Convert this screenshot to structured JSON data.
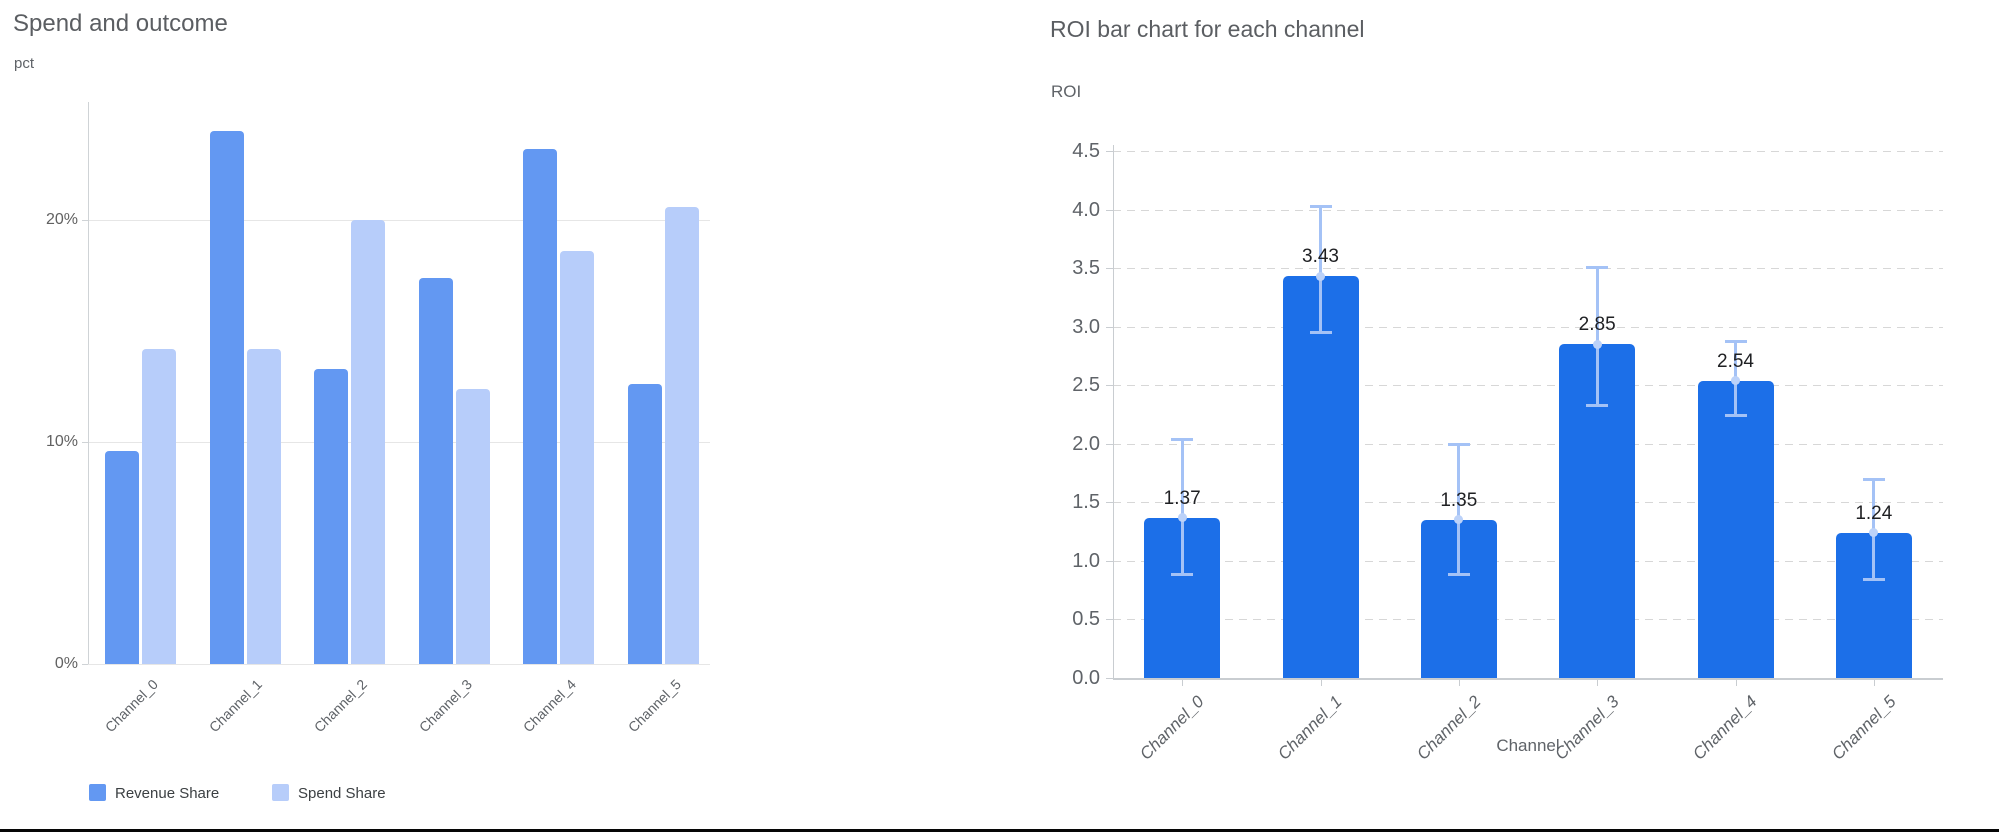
{
  "chart_data": [
    {
      "id": "spend-and-outcome",
      "type": "bar",
      "title": "Spend and outcome",
      "ylabel": "pct",
      "xlabel": "",
      "categories": [
        "Channel_0",
        "Channel_1",
        "Channel_2",
        "Channel_3",
        "Channel_4",
        "Channel_5"
      ],
      "series": [
        {
          "name": "Revenue Share",
          "color": "#6398f2",
          "values": [
            9.6,
            24.0,
            13.3,
            17.4,
            23.2,
            12.6
          ]
        },
        {
          "name": "Spend Share",
          "color": "#b7cdfa",
          "values": [
            14.2,
            14.2,
            20.0,
            12.4,
            18.6,
            20.6
          ]
        }
      ],
      "y_ticks": [
        {
          "value": 0,
          "label": "0%"
        },
        {
          "value": 10,
          "label": "10%"
        },
        {
          "value": 20,
          "label": "20%"
        }
      ],
      "ylim": [
        0,
        25.3
      ],
      "grid": "solid-horizontal",
      "legend_position": "bottom-left"
    },
    {
      "id": "roi-by-channel",
      "type": "bar",
      "title": "ROI bar chart for each channel",
      "ylabel": "ROI",
      "xlabel": "Channel",
      "categories": [
        "Channel_0",
        "Channel_1",
        "Channel_2",
        "Channel_3",
        "Channel_4",
        "Channel_5"
      ],
      "values": [
        1.37,
        3.43,
        1.35,
        2.85,
        2.54,
        1.24
      ],
      "bar_labels": [
        "1.37",
        "3.43",
        "1.35",
        "2.85",
        "2.54",
        "1.24"
      ],
      "error_low": [
        0.88,
        2.95,
        0.88,
        2.32,
        2.24,
        0.84
      ],
      "error_high": [
        2.04,
        4.03,
        2.0,
        3.51,
        2.88,
        1.7
      ],
      "bar_color": "#1c6fe8",
      "error_color": "#a4c2f6",
      "error_dot_color": "#bcd2f9",
      "y_ticks": [
        {
          "value": 0.0,
          "label": "0.0"
        },
        {
          "value": 0.5,
          "label": "0.5"
        },
        {
          "value": 1.0,
          "label": "1.0"
        },
        {
          "value": 1.5,
          "label": "1.5"
        },
        {
          "value": 2.0,
          "label": "2.0"
        },
        {
          "value": 2.5,
          "label": "2.5"
        },
        {
          "value": 3.0,
          "label": "3.0"
        },
        {
          "value": 3.5,
          "label": "3.5"
        },
        {
          "value": 4.0,
          "label": "4.0"
        },
        {
          "value": 4.5,
          "label": "4.5"
        }
      ],
      "ylim": [
        0,
        4.55
      ],
      "grid": "dashed-horizontal",
      "legend_position": "none"
    }
  ],
  "page": {
    "bottom_border_color": "#060606",
    "background": "#ffffff"
  }
}
